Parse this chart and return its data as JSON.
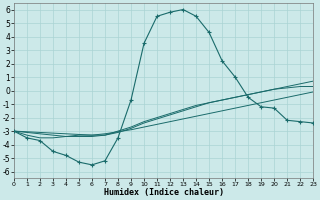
{
  "xlabel": "Humidex (Indice chaleur)",
  "background_color": "#cce9e9",
  "grid_color": "#aad4d4",
  "line_color": "#1a6b6b",
  "xlim": [
    0,
    23
  ],
  "ylim": [
    -6.5,
    6.5
  ],
  "xticks": [
    0,
    1,
    2,
    3,
    4,
    5,
    6,
    7,
    8,
    9,
    10,
    11,
    12,
    13,
    14,
    15,
    16,
    17,
    18,
    19,
    20,
    21,
    22,
    23
  ],
  "yticks": [
    -6,
    -5,
    -4,
    -3,
    -2,
    -1,
    0,
    1,
    2,
    3,
    4,
    5,
    6
  ],
  "line1_x": [
    0,
    1,
    2,
    3,
    4,
    5,
    6,
    7,
    8,
    9,
    10,
    11,
    12,
    13,
    14,
    15,
    16,
    17,
    18,
    19,
    20,
    21,
    22,
    23
  ],
  "line1_y": [
    -3.0,
    -3.5,
    -3.7,
    -4.5,
    -4.8,
    -5.3,
    -5.5,
    -5.2,
    -3.5,
    -0.7,
    3.5,
    5.5,
    5.8,
    6.0,
    5.5,
    4.3,
    2.2,
    1.0,
    -0.5,
    -1.2,
    -1.3,
    -2.2,
    -2.3,
    -2.4
  ],
  "line2_x": [
    0,
    1,
    2,
    3,
    4,
    5,
    6,
    7,
    8,
    9,
    10,
    11,
    12,
    13,
    14,
    15,
    16,
    17,
    18,
    19,
    20,
    21,
    22,
    23
  ],
  "line2_y": [
    -3.0,
    -3.3,
    -3.5,
    -3.5,
    -3.4,
    -3.3,
    -3.3,
    -3.3,
    -3.1,
    -2.8,
    -2.4,
    -2.1,
    -1.8,
    -1.5,
    -1.2,
    -0.9,
    -0.7,
    -0.5,
    -0.3,
    -0.1,
    0.1,
    0.2,
    0.3,
    0.3
  ],
  "line3_x": [
    0,
    1,
    2,
    3,
    4,
    5,
    6,
    7,
    8,
    9,
    10,
    11,
    12,
    13,
    14,
    15,
    16,
    17,
    18,
    19,
    20,
    21,
    22,
    23
  ],
  "line3_y": [
    -3.0,
    -3.1,
    -3.2,
    -3.3,
    -3.4,
    -3.4,
    -3.4,
    -3.3,
    -3.0,
    -2.7,
    -2.3,
    -2.0,
    -1.7,
    -1.4,
    -1.1,
    -0.9,
    -0.7,
    -0.5,
    -0.3,
    -0.1,
    0.1,
    0.3,
    0.5,
    0.7
  ],
  "line4_x": [
    0,
    1,
    2,
    3,
    4,
    5,
    6,
    7,
    8,
    9,
    10,
    11,
    12,
    13,
    14,
    15,
    16,
    17,
    18,
    19,
    20,
    21,
    22,
    23
  ],
  "line4_y": [
    -3.0,
    -3.05,
    -3.1,
    -3.15,
    -3.2,
    -3.25,
    -3.3,
    -3.2,
    -3.05,
    -2.9,
    -2.7,
    -2.5,
    -2.3,
    -2.1,
    -1.9,
    -1.7,
    -1.5,
    -1.3,
    -1.1,
    -0.9,
    -0.7,
    -0.5,
    -0.3,
    -0.1
  ]
}
